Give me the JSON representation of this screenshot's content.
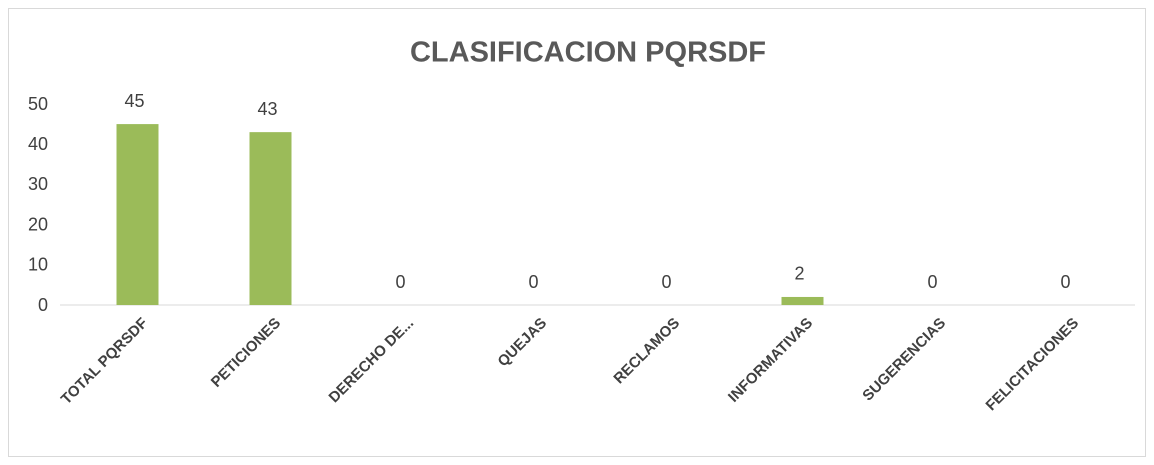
{
  "chart_data": {
    "type": "bar",
    "title": "CLASIFICACION  PQRSDF",
    "categories": [
      "TOTAL PQRSDF",
      "PETICIONES",
      "DERECHO DE...",
      "QUEJAS",
      "RECLAMOS",
      "INFORMATIVAS",
      "SUGERENCIAS",
      "FELICITACIONES"
    ],
    "values": [
      45,
      43,
      0,
      0,
      0,
      2,
      0,
      0
    ],
    "color": "#9bbb59",
    "ylim": [
      0,
      50
    ],
    "yticks": [
      0,
      10,
      20,
      30,
      40,
      50
    ],
    "grid": false
  }
}
